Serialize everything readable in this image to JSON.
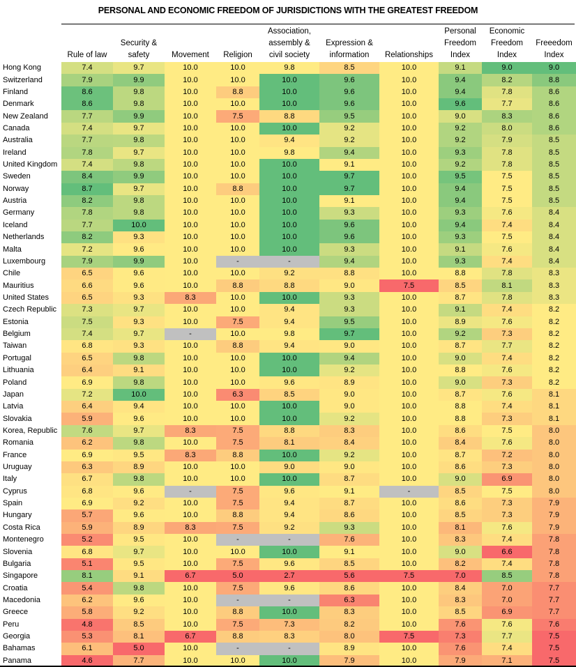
{
  "chart_data": {
    "type": "heatmap",
    "title": "PERSONAL AND ECONOMIC FREEDOM OF JURISDICTIONS WITH THE GREATEST FREEDOM",
    "columns": [
      "Rule of law",
      "Security & safety",
      "Movement",
      "Religion",
      "Association, assembly & civil society",
      "Expression & information",
      "Relationships",
      "Personal Freedom Index",
      "Economic Freedom Index",
      "Freeedom Index"
    ],
    "column_headers": [
      [
        "",
        "",
        "Rule of law"
      ],
      [
        "",
        "Security &",
        "safety"
      ],
      [
        "",
        "",
        "Movement"
      ],
      [
        "",
        "",
        "Religion"
      ],
      [
        "Association,",
        "assembly &",
        "civil society"
      ],
      [
        "",
        "Expression &",
        "information"
      ],
      [
        "",
        "",
        "Relationships"
      ],
      [
        "Personal",
        "Freedom",
        "Index"
      ],
      [
        "Economic",
        "Freedom",
        "Index"
      ],
      [
        "",
        "Freeedom",
        "Index"
      ]
    ],
    "missing_marker": "-",
    "color_scale": {
      "low": "#f8696b",
      "mid": "#ffeb84",
      "high": "#63be7b",
      "missing": "#c0c0c0"
    },
    "rows": [
      {
        "name": "Hong Kong",
        "values": [
          "7.4",
          "9.7",
          "10.0",
          "10.0",
          "9.8",
          "8.5",
          "10.0",
          "9.1",
          "9.0",
          "9.0"
        ]
      },
      {
        "name": "Switzerland",
        "values": [
          "7.9",
          "9.9",
          "10.0",
          "10.0",
          "10.0",
          "9.6",
          "10.0",
          "9.4",
          "8.2",
          "8.8"
        ]
      },
      {
        "name": "Finland",
        "values": [
          "8.6",
          "9.8",
          "10.0",
          "8.8",
          "10.0",
          "9.6",
          "10.0",
          "9.4",
          "7.8",
          "8.6"
        ]
      },
      {
        "name": "Denmark",
        "values": [
          "8.6",
          "9.8",
          "10.0",
          "10.0",
          "10.0",
          "9.6",
          "10.0",
          "9.6",
          "7.7",
          "8.6"
        ]
      },
      {
        "name": "New Zealand",
        "values": [
          "7.7",
          "9.9",
          "10.0",
          "7.5",
          "8.8",
          "9.5",
          "10.0",
          "9.0",
          "8.3",
          "8.6"
        ]
      },
      {
        "name": "Canada",
        "values": [
          "7.4",
          "9.7",
          "10.0",
          "10.0",
          "10.0",
          "9.2",
          "10.0",
          "9.2",
          "8.0",
          "8.6"
        ]
      },
      {
        "name": "Australia",
        "values": [
          "7.7",
          "9.8",
          "10.0",
          "10.0",
          "9.4",
          "9.2",
          "10.0",
          "9.2",
          "7.9",
          "8.5"
        ]
      },
      {
        "name": "Ireland",
        "values": [
          "7.8",
          "9.7",
          "10.0",
          "10.0",
          "9.8",
          "9.4",
          "10.0",
          "9.3",
          "7.8",
          "8.5"
        ]
      },
      {
        "name": "United Kingdom",
        "values": [
          "7.4",
          "9.8",
          "10.0",
          "10.0",
          "10.0",
          "9.1",
          "10.0",
          "9.2",
          "7.8",
          "8.5"
        ]
      },
      {
        "name": "Sweden",
        "values": [
          "8.4",
          "9.9",
          "10.0",
          "10.0",
          "10.0",
          "9.7",
          "10.0",
          "9.5",
          "7.5",
          "8.5"
        ]
      },
      {
        "name": "Norway",
        "values": [
          "8.7",
          "9.7",
          "10.0",
          "8.8",
          "10.0",
          "9.7",
          "10.0",
          "9.4",
          "7.5",
          "8.5"
        ]
      },
      {
        "name": "Austria",
        "values": [
          "8.2",
          "9.8",
          "10.0",
          "10.0",
          "10.0",
          "9.1",
          "10.0",
          "9.4",
          "7.5",
          "8.5"
        ]
      },
      {
        "name": "Germany",
        "values": [
          "7.8",
          "9.8",
          "10.0",
          "10.0",
          "10.0",
          "9.3",
          "10.0",
          "9.3",
          "7.6",
          "8.4"
        ]
      },
      {
        "name": "Iceland",
        "values": [
          "7.7",
          "10.0",
          "10.0",
          "10.0",
          "10.0",
          "9.6",
          "10.0",
          "9.4",
          "7.4",
          "8.4"
        ]
      },
      {
        "name": "Netherlands",
        "values": [
          "8.2",
          "9.3",
          "10.0",
          "10.0",
          "10.0",
          "9.6",
          "10.0",
          "9.3",
          "7.5",
          "8.4"
        ]
      },
      {
        "name": "Malta",
        "values": [
          "7.2",
          "9.6",
          "10.0",
          "10.0",
          "10.0",
          "9.3",
          "10.0",
          "9.1",
          "7.6",
          "8.4"
        ]
      },
      {
        "name": "Luxembourg",
        "values": [
          "7.9",
          "9.9",
          "10.0",
          "-",
          "-",
          "9.4",
          "10.0",
          "9.3",
          "7.4",
          "8.4"
        ]
      },
      {
        "name": "Chile",
        "values": [
          "6.5",
          "9.6",
          "10.0",
          "10.0",
          "9.2",
          "8.8",
          "10.0",
          "8.8",
          "7.8",
          "8.3"
        ]
      },
      {
        "name": "Mauritius",
        "values": [
          "6.6",
          "9.6",
          "10.0",
          "8.8",
          "8.8",
          "9.0",
          "7.5",
          "8.5",
          "8.1",
          "8.3"
        ]
      },
      {
        "name": "United States",
        "values": [
          "6.5",
          "9.3",
          "8.3",
          "10.0",
          "10.0",
          "9.3",
          "10.0",
          "8.7",
          "7.8",
          "8.3"
        ]
      },
      {
        "name": "Czech Republic",
        "values": [
          "7.3",
          "9.7",
          "10.0",
          "10.0",
          "9.4",
          "9.3",
          "10.0",
          "9.1",
          "7.4",
          "8.2"
        ]
      },
      {
        "name": "Estonia",
        "values": [
          "7.5",
          "9.3",
          "10.0",
          "7.5",
          "9.4",
          "9.5",
          "10.0",
          "8.9",
          "7.6",
          "8.2"
        ]
      },
      {
        "name": "Belgium",
        "values": [
          "7.4",
          "9.7",
          "-",
          "10.0",
          "9.8",
          "9.7",
          "10.0",
          "9.2",
          "7.3",
          "8.2"
        ]
      },
      {
        "name": "Taiwan",
        "values": [
          "6.8",
          "9.3",
          "10.0",
          "8.8",
          "9.4",
          "9.0",
          "10.0",
          "8.7",
          "7.7",
          "8.2"
        ]
      },
      {
        "name": "Portugal",
        "values": [
          "6.5",
          "9.8",
          "10.0",
          "10.0",
          "10.0",
          "9.4",
          "10.0",
          "9.0",
          "7.4",
          "8.2"
        ]
      },
      {
        "name": "Lithuania",
        "values": [
          "6.4",
          "9.1",
          "10.0",
          "10.0",
          "10.0",
          "9.2",
          "10.0",
          "8.8",
          "7.6",
          "8.2"
        ]
      },
      {
        "name": "Poland",
        "values": [
          "6.9",
          "9.8",
          "10.0",
          "10.0",
          "9.6",
          "8.9",
          "10.0",
          "9.0",
          "7.3",
          "8.2"
        ]
      },
      {
        "name": "Japan",
        "values": [
          "7.2",
          "10.0",
          "10.0",
          "6.3",
          "8.5",
          "9.0",
          "10.0",
          "8.7",
          "7.6",
          "8.1"
        ]
      },
      {
        "name": "Latvia",
        "values": [
          "6.4",
          "9.4",
          "10.0",
          "10.0",
          "10.0",
          "9.0",
          "10.0",
          "8.8",
          "7.4",
          "8.1"
        ]
      },
      {
        "name": "Slovakia",
        "values": [
          "5.9",
          "9.6",
          "10.0",
          "10.0",
          "10.0",
          "9.2",
          "10.0",
          "8.8",
          "7.3",
          "8.1"
        ]
      },
      {
        "name": "Korea, Republic",
        "values": [
          "7.6",
          "9.7",
          "8.3",
          "7.5",
          "8.8",
          "8.3",
          "10.0",
          "8.6",
          "7.5",
          "8.0"
        ]
      },
      {
        "name": "Romania",
        "values": [
          "6.2",
          "9.8",
          "10.0",
          "7.5",
          "8.1",
          "8.4",
          "10.0",
          "8.4",
          "7.6",
          "8.0"
        ]
      },
      {
        "name": "France",
        "values": [
          "6.9",
          "9.5",
          "8.3",
          "8.8",
          "10.0",
          "9.2",
          "10.0",
          "8.7",
          "7.2",
          "8.0"
        ]
      },
      {
        "name": "Uruguay",
        "values": [
          "6.3",
          "8.9",
          "10.0",
          "10.0",
          "9.0",
          "9.0",
          "10.0",
          "8.6",
          "7.3",
          "8.0"
        ]
      },
      {
        "name": "Italy",
        "values": [
          "6.7",
          "9.8",
          "10.0",
          "10.0",
          "10.0",
          "8.7",
          "10.0",
          "9.0",
          "6.9",
          "8.0"
        ]
      },
      {
        "name": "Cyprus",
        "values": [
          "6.8",
          "9.6",
          "-",
          "7.5",
          "9.6",
          "9.1",
          "-",
          "8.5",
          "7.5",
          "8.0"
        ]
      },
      {
        "name": "Spain",
        "values": [
          "6.9",
          "9.2",
          "10.0",
          "7.5",
          "9.4",
          "8.7",
          "10.0",
          "8.6",
          "7.3",
          "7.9"
        ]
      },
      {
        "name": "Hungary",
        "values": [
          "5.7",
          "9.6",
          "10.0",
          "8.8",
          "9.4",
          "8.6",
          "10.0",
          "8.5",
          "7.3",
          "7.9"
        ]
      },
      {
        "name": "Costa Rica",
        "values": [
          "5.9",
          "8.9",
          "8.3",
          "7.5",
          "9.2",
          "9.3",
          "10.0",
          "8.1",
          "7.6",
          "7.9"
        ]
      },
      {
        "name": "Montenegro",
        "values": [
          "5.2",
          "9.5",
          "10.0",
          "-",
          "-",
          "7.6",
          "10.0",
          "8.3",
          "7.4",
          "7.8"
        ]
      },
      {
        "name": "Slovenia",
        "values": [
          "6.8",
          "9.7",
          "10.0",
          "10.0",
          "10.0",
          "9.1",
          "10.0",
          "9.0",
          "6.6",
          "7.8"
        ]
      },
      {
        "name": "Bulgaria",
        "values": [
          "5.1",
          "9.5",
          "10.0",
          "7.5",
          "9.6",
          "8.5",
          "10.0",
          "8.2",
          "7.4",
          "7.8"
        ]
      },
      {
        "name": "Singapore",
        "values": [
          "8.1",
          "9.1",
          "6.7",
          "5.0",
          "2.7",
          "5.6",
          "7.5",
          "7.0",
          "8.5",
          "7.8"
        ]
      },
      {
        "name": "Croatia",
        "values": [
          "5.4",
          "9.8",
          "10.0",
          "7.5",
          "9.6",
          "8.6",
          "10.0",
          "8.4",
          "7.0",
          "7.7"
        ]
      },
      {
        "name": "Macedonia",
        "values": [
          "6.2",
          "9.6",
          "10.0",
          "-",
          "-",
          "6.3",
          "10.0",
          "8.3",
          "7.0",
          "7.7"
        ]
      },
      {
        "name": "Greece",
        "values": [
          "5.8",
          "9.2",
          "10.0",
          "8.8",
          "10.0",
          "8.3",
          "10.0",
          "8.5",
          "6.9",
          "7.7"
        ]
      },
      {
        "name": "Peru",
        "values": [
          "4.8",
          "8.5",
          "10.0",
          "7.5",
          "7.3",
          "8.2",
          "10.0",
          "7.6",
          "7.6",
          "7.6"
        ]
      },
      {
        "name": "Georgia",
        "values": [
          "5.3",
          "8.1",
          "6.7",
          "8.8",
          "8.3",
          "8.0",
          "7.5",
          "7.3",
          "7.7",
          "7.5"
        ]
      },
      {
        "name": "Bahamas",
        "values": [
          "6.1",
          "5.0",
          "10.0",
          "-",
          "-",
          "8.9",
          "10.0",
          "7.6",
          "7.4",
          "7.5"
        ]
      },
      {
        "name": "Panama",
        "values": [
          "4.6",
          "7.7",
          "10.0",
          "10.0",
          "10.0",
          "7.9",
          "10.0",
          "7.9",
          "7.1",
          "7.5"
        ]
      }
    ]
  }
}
